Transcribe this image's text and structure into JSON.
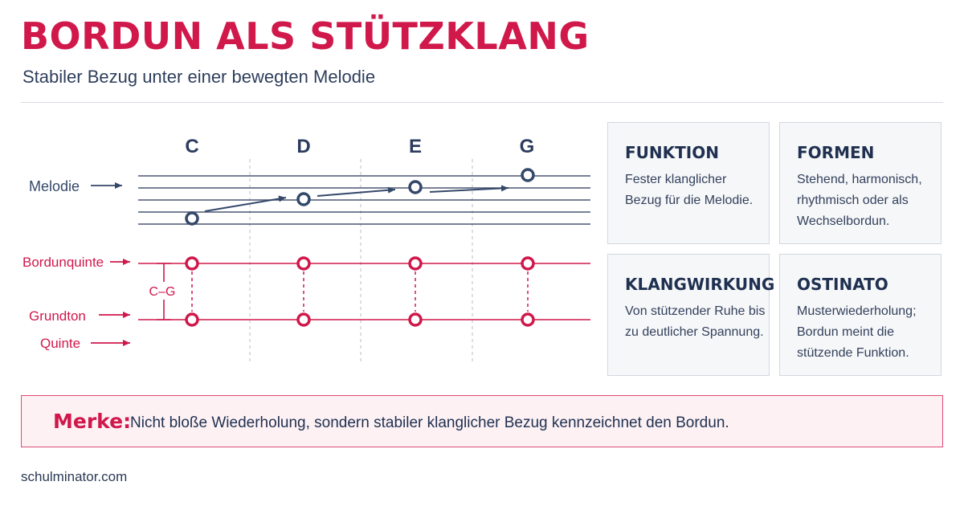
{
  "header": {
    "title": "BORDUN ALS STÜTZKLANG",
    "subtitle": "Stabiler Bezug unter einer bewegten Melodie"
  },
  "diagram": {
    "notes": [
      "C",
      "D",
      "E",
      "G"
    ],
    "labels": {
      "melodie": "Melodie",
      "bordunquinte": "Bordunquinte",
      "grundton": "Grundton",
      "quinte": "Quinte",
      "interval": "C–G"
    },
    "colors": {
      "navy": "#34486a",
      "accent": "#d0184b"
    }
  },
  "cards": [
    {
      "title": "FUNKTION",
      "text": "Fester klanglicher Bezug für die Melodie."
    },
    {
      "title": "FORMEN",
      "text": "Stehend, harmonisch, rhythmisch oder als Wechselbordun."
    },
    {
      "title": "KLANGWIRKUNG",
      "text": "Von stützender Ruhe bis zu deutlicher Spannung."
    },
    {
      "title": "OSTINATO",
      "text": "Musterwiederholung; Bordun meint die stützende Funktion."
    }
  ],
  "note": {
    "label": "Merke:",
    "text": "Nicht bloße Wiederholung, sondern stabiler klanglicher Bezug kennzeichnet den Bordun."
  },
  "footer": {
    "text": "schulminator.com"
  }
}
